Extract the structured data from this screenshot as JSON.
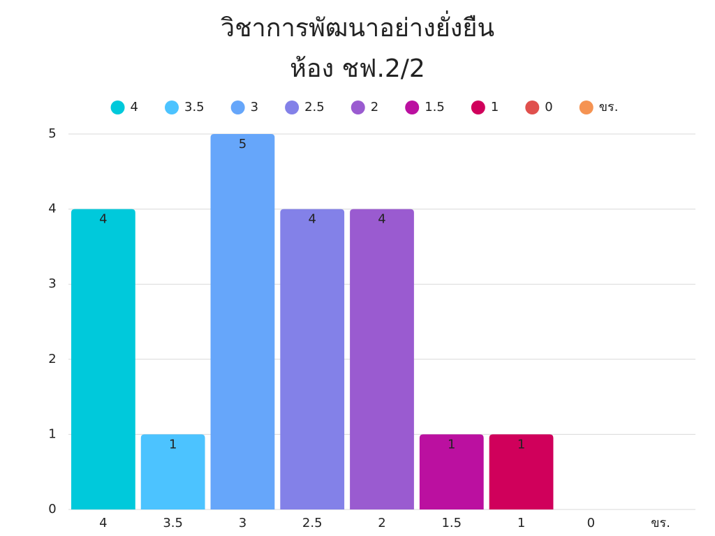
{
  "chart_data": {
    "type": "bar",
    "title": [
      "วิชาการพัฒนาอย่างยั่งยืน",
      "ห้อง ชฟ.2/2"
    ],
    "categories": [
      "4",
      "3.5",
      "3",
      "2.5",
      "2",
      "1.5",
      "1",
      "0",
      "ขร."
    ],
    "values": [
      4,
      1,
      5,
      4,
      4,
      1,
      1,
      0,
      0
    ],
    "colors": [
      "#00c9db",
      "#4cc3ff",
      "#66a6fa",
      "#8381e8",
      "#9a5bd0",
      "#bb10a0",
      "#d0005b",
      "#e0504d",
      "#f59352"
    ],
    "ylim": [
      0,
      5
    ],
    "yticks": [
      0,
      1,
      2,
      3,
      4,
      5
    ],
    "grid": true,
    "legend": "top"
  }
}
